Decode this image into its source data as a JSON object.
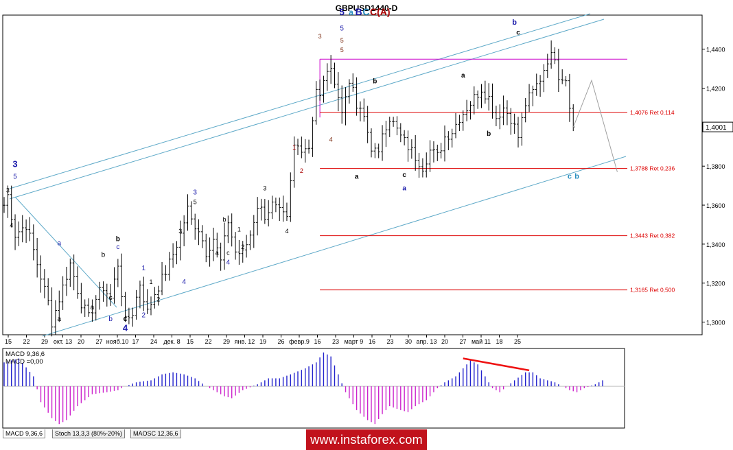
{
  "title": "GBPUSD1440-D",
  "colors": {
    "bar": "#000000",
    "channel": "#5ea9c8",
    "resistance": "#cc00cc",
    "fib": "#dd0000",
    "projection": "#a0a0a0",
    "macd_pos": "#2222cc",
    "macd_neg": "#cc22cc",
    "divergence": "#ee1111",
    "wave_blue": "#1a1aaa",
    "wave_red": "#aa0000",
    "wave_brown": "#7a2a10",
    "wave_cyan": "#2a8fc0"
  },
  "chart_data": {
    "type": "ohlc",
    "symbol": "GBPUSD",
    "timeframe": "D1",
    "ylim": [
      1.2935,
      1.4575
    ],
    "y_ticks": [
      "1,4400",
      "1,4200",
      "1,4000",
      "1,3800",
      "1,3600",
      "1,3400",
      "1,3200",
      "1,3000"
    ],
    "y_tick_values": [
      1.44,
      1.42,
      1.4,
      1.38,
      1.36,
      1.34,
      1.32,
      1.3
    ],
    "last_price_label": "1,4001",
    "last_price": 1.4001,
    "x_ticks": [
      "15",
      "22",
      "29",
      "окт. 13",
      "20",
      "27",
      "нояб.10",
      "17",
      "24",
      "дек. 8",
      "15",
      "22",
      "29",
      "янв. 12",
      "19",
      "26",
      "февр.9",
      "16",
      "23",
      "март 9",
      "16",
      "23",
      "30",
      "апр. 13",
      "20",
      "27",
      "май 11",
      "18",
      "25"
    ],
    "bar_count": 164,
    "bars_anchor_close": [
      [
        0,
        1.36
      ],
      [
        1,
        1.365
      ],
      [
        3,
        1.345
      ],
      [
        6,
        1.35
      ],
      [
        9,
        1.33
      ],
      [
        12,
        1.31
      ],
      [
        13,
        1.3
      ],
      [
        16,
        1.318
      ],
      [
        18,
        1.33
      ],
      [
        21,
        1.31
      ],
      [
        23,
        1.302
      ],
      [
        25,
        1.312
      ],
      [
        27,
        1.318
      ],
      [
        29,
        1.312
      ],
      [
        31,
        1.33
      ],
      [
        33,
        1.3
      ],
      [
        35,
        1.305
      ],
      [
        37,
        1.32
      ],
      [
        39,
        1.305
      ],
      [
        41,
        1.315
      ],
      [
        43,
        1.322
      ],
      [
        45,
        1.33
      ],
      [
        48,
        1.345
      ],
      [
        50,
        1.358
      ],
      [
        51,
        1.352
      ],
      [
        53,
        1.348
      ],
      [
        55,
        1.336
      ],
      [
        57,
        1.343
      ],
      [
        59,
        1.331
      ],
      [
        61,
        1.352
      ],
      [
        63,
        1.336
      ],
      [
        65,
        1.335
      ],
      [
        67,
        1.345
      ],
      [
        69,
        1.36
      ],
      [
        71,
        1.355
      ],
      [
        73,
        1.36
      ],
      [
        75,
        1.356
      ],
      [
        77,
        1.352
      ],
      [
        79,
        1.39
      ],
      [
        81,
        1.39
      ],
      [
        83,
        1.39
      ],
      [
        85,
        1.42
      ],
      [
        86,
        1.415
      ],
      [
        88,
        1.43
      ],
      [
        90,
        1.425
      ],
      [
        92,
        1.407
      ],
      [
        94,
        1.425
      ],
      [
        96,
        1.41
      ],
      [
        98,
        1.405
      ],
      [
        100,
        1.39
      ],
      [
        102,
        1.385
      ],
      [
        103,
        1.398
      ],
      [
        105,
        1.405
      ],
      [
        108,
        1.395
      ],
      [
        110,
        1.39
      ],
      [
        112,
        1.385
      ],
      [
        114,
        1.38
      ],
      [
        116,
        1.388
      ],
      [
        118,
        1.385
      ],
      [
        120,
        1.395
      ],
      [
        122,
        1.398
      ],
      [
        124,
        1.405
      ],
      [
        126,
        1.41
      ],
      [
        128,
        1.415
      ],
      [
        130,
        1.42
      ],
      [
        132,
        1.415
      ],
      [
        134,
        1.405
      ],
      [
        136,
        1.41
      ],
      [
        138,
        1.405
      ],
      [
        140,
        1.395
      ],
      [
        142,
        1.412
      ],
      [
        144,
        1.418
      ],
      [
        146,
        1.425
      ],
      [
        148,
        1.435
      ],
      [
        150,
        1.437
      ],
      [
        151,
        1.427
      ],
      [
        153,
        1.425
      ],
      [
        155,
        1.4
      ]
    ],
    "fib_levels": [
      {
        "value": 1.4076,
        "label": "1,4076 Ret 0,114"
      },
      {
        "value": 1.3788,
        "label": "1,3788 Ret 0,236"
      },
      {
        "value": 1.3443,
        "label": "1,3443 Ret 0,382"
      },
      {
        "value": 1.3165,
        "label": "1,3165 Ret 0,500"
      }
    ],
    "resistance_level": 1.4349,
    "projection_path": [
      [
        155,
        1.4
      ],
      [
        160,
        1.424
      ],
      [
        167,
        1.377
      ]
    ],
    "wave_labels": [
      {
        "text": "3",
        "bar": 3,
        "price": 1.3795,
        "color": "wave_blue",
        "bold": true,
        "size": 13
      },
      {
        "text": "5",
        "bar": 3,
        "price": 1.3735,
        "color": "wave_blue",
        "size": 10
      },
      {
        "text": "3",
        "bar": 1,
        "price": 1.3665,
        "color": "bar",
        "size": 9
      },
      {
        "text": "4",
        "bar": 2,
        "price": 1.3485,
        "color": "bar",
        "size": 9
      },
      {
        "text": "a",
        "bar": 15,
        "price": 1.3395,
        "color": "wave_blue",
        "size": 10
      },
      {
        "text": "a",
        "bar": 15,
        "price": 1.3005,
        "color": "bar",
        "size": 10
      },
      {
        "text": "b",
        "bar": 27,
        "price": 1.3335,
        "color": "bar",
        "size": 10
      },
      {
        "text": "a",
        "bar": 24,
        "price": 1.3065,
        "color": "bar",
        "size": 10
      },
      {
        "text": "c",
        "bar": 29,
        "price": 1.3115,
        "color": "bar",
        "size": 10
      },
      {
        "text": "b",
        "bar": 29,
        "price": 1.3005,
        "color": "wave_blue",
        "size": 10
      },
      {
        "text": "b",
        "bar": 31,
        "price": 1.3415,
        "color": "bar",
        "bold": true,
        "size": 10
      },
      {
        "text": "c",
        "bar": 31,
        "price": 1.3375,
        "color": "wave_blue",
        "size": 10
      },
      {
        "text": "c",
        "bar": 33,
        "price": 1.3005,
        "color": "bar",
        "bold": true,
        "size": 11
      },
      {
        "text": "4",
        "bar": 33,
        "price": 1.2955,
        "color": "wave_blue",
        "bold": true,
        "size": 13
      },
      {
        "text": "1",
        "bar": 38,
        "price": 1.3265,
        "color": "wave_blue",
        "size": 10
      },
      {
        "text": "2",
        "bar": 38,
        "price": 1.3025,
        "color": "wave_blue",
        "size": 10
      },
      {
        "text": "1",
        "bar": 40,
        "price": 1.3195,
        "color": "bar",
        "size": 9
      },
      {
        "text": "2",
        "bar": 42,
        "price": 1.3105,
        "color": "bar",
        "size": 9
      },
      {
        "text": "3",
        "bar": 48,
        "price": 1.3455,
        "color": "bar",
        "size": 9
      },
      {
        "text": "4",
        "bar": 49,
        "price": 1.3195,
        "color": "wave_blue",
        "size": 10
      },
      {
        "text": "3",
        "bar": 52,
        "price": 1.3655,
        "color": "wave_blue",
        "size": 10
      },
      {
        "text": "5",
        "bar": 52,
        "price": 1.3605,
        "color": "bar",
        "size": 9
      },
      {
        "text": "b",
        "bar": 60,
        "price": 1.3515,
        "color": "bar",
        "size": 9
      },
      {
        "text": "1",
        "bar": 64,
        "price": 1.3465,
        "color": "bar",
        "size": 9
      },
      {
        "text": "a",
        "bar": 58,
        "price": 1.3345,
        "color": "bar",
        "size": 9
      },
      {
        "text": "c",
        "bar": 61,
        "price": 1.3345,
        "color": "bar",
        "size": 9
      },
      {
        "text": "4",
        "bar": 61,
        "price": 1.3295,
        "color": "wave_blue",
        "size": 10
      },
      {
        "text": "2",
        "bar": 65,
        "price": 1.3375,
        "color": "bar",
        "size": 9
      },
      {
        "text": "3",
        "bar": 71,
        "price": 1.3675,
        "color": "bar",
        "size": 9
      },
      {
        "text": "4",
        "bar": 77,
        "price": 1.3455,
        "color": "bar",
        "size": 9
      },
      {
        "text": "1",
        "bar": 79,
        "price": 1.3885,
        "color": "wave_red",
        "size": 9
      },
      {
        "text": "2",
        "bar": 81,
        "price": 1.3765,
        "color": "wave_red",
        "size": 9
      },
      {
        "text": "3",
        "bar": 86,
        "price": 1.4455,
        "color": "wave_brown",
        "size": 9
      },
      {
        "text": "4",
        "bar": 89,
        "price": 1.3925,
        "color": "wave_brown",
        "size": 9
      },
      {
        "text": "5",
        "bar": 92,
        "price": 1.4575,
        "color": "wave_blue",
        "bold": true,
        "size": 13
      },
      {
        "text": "5",
        "bar": 92,
        "price": 1.4495,
        "color": "wave_blue",
        "size": 10
      },
      {
        "text": "5",
        "bar": 92,
        "price": 1.4435,
        "color": "wave_brown",
        "size": 9
      },
      {
        "text": "5",
        "bar": 92,
        "price": 1.4385,
        "color": "wave_brown",
        "size": 9
      },
      {
        "text": "b",
        "bar": 101,
        "price": 1.4225,
        "color": "bar",
        "bold": true,
        "size": 10
      },
      {
        "text": "a",
        "bar": 96,
        "price": 1.3735,
        "color": "bar",
        "bold": true,
        "size": 10
      },
      {
        "text": "c",
        "bar": 109,
        "price": 1.3745,
        "color": "bar",
        "bold": true,
        "size": 10
      },
      {
        "text": "a",
        "bar": 109,
        "price": 1.3675,
        "color": "wave_blue",
        "bold": true,
        "size": 10
      },
      {
        "text": "a",
        "bar": 125,
        "price": 1.4255,
        "color": "bar",
        "bold": true,
        "size": 10
      },
      {
        "text": "b",
        "bar": 132,
        "price": 1.3955,
        "color": "bar",
        "bold": true,
        "size": 10
      },
      {
        "text": "b",
        "bar": 139,
        "price": 1.4525,
        "color": "wave_blue",
        "bold": true,
        "size": 11
      },
      {
        "text": "c",
        "bar": 140,
        "price": 1.4475,
        "color": "bar",
        "bold": true,
        "size": 10
      },
      {
        "text": "c",
        "bar": 154,
        "price": 1.3735,
        "color": "wave_cyan",
        "bold": true,
        "size": 11
      },
      {
        "text": "b",
        "bar": 156,
        "price": 1.3735,
        "color": "wave_cyan",
        "bold": true,
        "size": 11
      }
    ],
    "wave_header": [
      {
        "text": "a",
        "color": "wave_cyan",
        "size": 12
      },
      {
        "text": "B",
        "color": "wave_blue",
        "size": 14
      },
      {
        "text": "C",
        "color": "wave_cyan",
        "size": 14
      },
      {
        "text": "C(A)",
        "color": "wave_red",
        "size": 14
      }
    ],
    "macd": {
      "label1": "MACD 9,36,6",
      "label2": "MACD =0,00",
      "ylim": [
        -0.021,
        0.019
      ],
      "values_anchor": [
        [
          0,
          0.012
        ],
        [
          4,
          0.014
        ],
        [
          8,
          0.005
        ],
        [
          10,
          -0.008
        ],
        [
          13,
          -0.016
        ],
        [
          15,
          -0.019
        ],
        [
          17,
          -0.017
        ],
        [
          20,
          -0.01
        ],
        [
          24,
          -0.004
        ],
        [
          28,
          -0.003
        ],
        [
          31,
          -0.002
        ],
        [
          33,
          0.0
        ],
        [
          36,
          0.002
        ],
        [
          40,
          0.003
        ],
        [
          43,
          0.006
        ],
        [
          46,
          0.007
        ],
        [
          49,
          0.006
        ],
        [
          52,
          0.004
        ],
        [
          55,
          0.0
        ],
        [
          58,
          -0.003
        ],
        [
          60,
          -0.005
        ],
        [
          62,
          -0.006
        ],
        [
          65,
          -0.002
        ],
        [
          69,
          0.001
        ],
        [
          72,
          0.004
        ],
        [
          75,
          0.004
        ],
        [
          78,
          0.006
        ],
        [
          82,
          0.009
        ],
        [
          85,
          0.012
        ],
        [
          87,
          0.017
        ],
        [
          89,
          0.015
        ],
        [
          91,
          0.006
        ],
        [
          93,
          -0.003
        ],
        [
          96,
          -0.012
        ],
        [
          99,
          -0.017
        ],
        [
          101,
          -0.019
        ],
        [
          103,
          -0.014
        ],
        [
          105,
          -0.01
        ],
        [
          108,
          -0.012
        ],
        [
          110,
          -0.013
        ],
        [
          112,
          -0.01
        ],
        [
          115,
          -0.007
        ],
        [
          118,
          -0.001
        ],
        [
          120,
          0.002
        ],
        [
          123,
          0.005
        ],
        [
          125,
          0.009
        ],
        [
          127,
          0.013
        ],
        [
          129,
          0.011
        ],
        [
          131,
          0.005
        ],
        [
          133,
          -0.001
        ],
        [
          135,
          -0.003
        ],
        [
          137,
          0.0
        ],
        [
          139,
          0.003
        ],
        [
          142,
          0.007
        ],
        [
          144,
          0.007
        ],
        [
          146,
          0.004
        ],
        [
          148,
          0.003
        ],
        [
          150,
          0.002
        ],
        [
          152,
          0.0
        ],
        [
          154,
          -0.002
        ],
        [
          156,
          -0.003
        ],
        [
          158,
          -0.001
        ],
        [
          161,
          0.001
        ],
        [
          163,
          0.003
        ]
      ],
      "divergence_line": [
        [
          125,
          0.014
        ],
        [
          143,
          0.008
        ]
      ]
    }
  },
  "tabs": [
    "MACD 9,36,6",
    "Stoch 13,3,3 (80%-20%)",
    "MAOSC 12,36,6"
  ],
  "banner": "www.instaforex.com"
}
